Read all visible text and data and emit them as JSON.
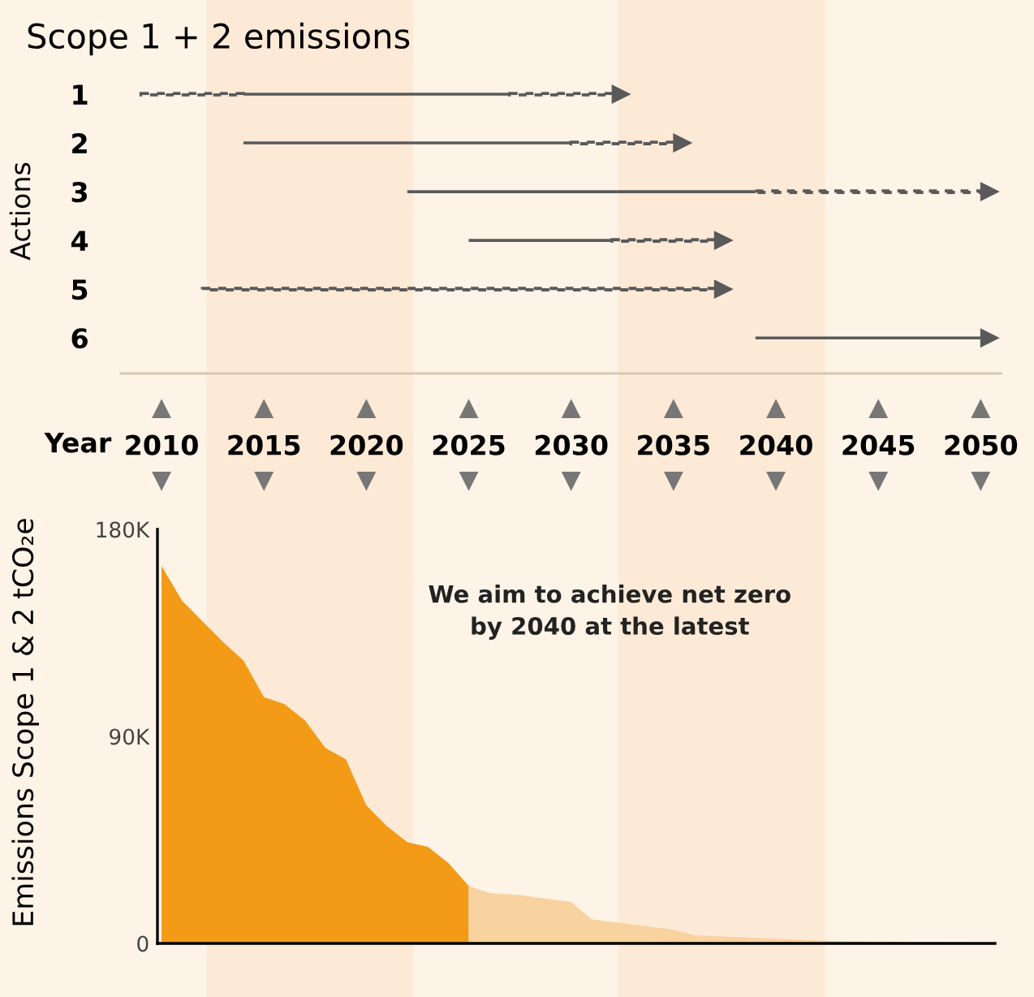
{
  "chart_data": [
    {
      "type": "bar",
      "orientation": "horizontal",
      "title": "Scope 1 + 2 emissions",
      "ylabel": "Actions",
      "xlabel": "Year",
      "categories": [
        "1",
        "2",
        "3",
        "4",
        "5",
        "6"
      ],
      "series": [
        {
          "color": "#5a5a5a",
          "line_style": "dotted",
          "base": [
            2009,
            null,
            null,
            null,
            2012,
            null
          ],
          "values": [
            5,
            null,
            null,
            null,
            25,
            null
          ]
        },
        {
          "color": "#5a5a5a",
          "line_style": "solid",
          "base": [
            2014,
            2014,
            2022,
            2025,
            null,
            2039
          ],
          "values": [
            13,
            16,
            17,
            7,
            null,
            11
          ]
        },
        {
          "color": "#5a5a5a",
          "line_style": "dotted",
          "base": [
            2027,
            2030,
            2039,
            2032,
            null,
            null
          ],
          "values": [
            5,
            5,
            11,
            5,
            null,
            null
          ]
        }
      ],
      "xlim": [
        2008,
        2051
      ],
      "xticks": [
        2010,
        2015,
        2020,
        2025,
        2030,
        2035,
        2040,
        2045,
        2050
      ],
      "bands": [
        {
          "axis": "x",
          "from": 2012.2,
          "to": 2022.3,
          "color": "#fcead6"
        },
        {
          "axis": "x",
          "from": 2032.3,
          "to": 2042.4,
          "color": "#fcead6"
        }
      ],
      "grid": false,
      "legend": false
    },
    {
      "type": "area",
      "ylabel": "Emissions Scope 1 & 2 tCO₂e",
      "series": [
        {
          "color": "#f39a17",
          "x": [
            2010,
            2011,
            2013,
            2014,
            2015,
            2016,
            2017,
            2018,
            2019,
            2020,
            2021,
            2022,
            2023,
            2024,
            2025
          ],
          "values": [
            164000,
            149000,
            131000,
            123000,
            107000,
            104000,
            97000,
            85000,
            80000,
            60000,
            51000,
            44000,
            42000,
            35000,
            25000
          ]
        },
        {
          "color": "#f8d3a0",
          "x": [
            2025,
            2026,
            2027.5,
            2030,
            2031,
            2035,
            2036,
            2040,
            2043,
            2050
          ],
          "values": [
            25000,
            22000,
            21000,
            18000,
            10500,
            6000,
            3500,
            2000,
            1000,
            300
          ]
        }
      ],
      "xlim": [
        2009.8,
        2050.7
      ],
      "ylim": [
        0,
        180000
      ],
      "xticks": [
        2010,
        2015,
        2020,
        2025,
        2030,
        2035,
        2040,
        2045,
        2050
      ],
      "yticks": [
        0,
        {
          "value": 90000,
          "label": "90K"
        },
        {
          "value": 180000,
          "label": "180K"
        }
      ],
      "tick_labels": "y",
      "annotations": [
        "We aim to achieve net zero\nby 2040 at the latest"
      ],
      "grid": false,
      "legend": false
    }
  ]
}
